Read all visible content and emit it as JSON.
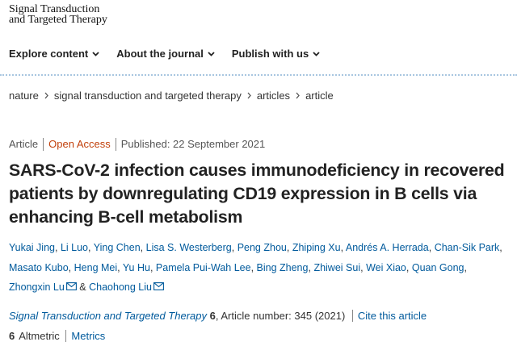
{
  "header": {
    "logo_line1": "Signal Transduction",
    "logo_line2": "and Targeted Therapy"
  },
  "nav": [
    "Explore content",
    "About the journal",
    "Publish with us"
  ],
  "breadcrumb": [
    "nature",
    "signal transduction and targeted therapy",
    "articles",
    "article"
  ],
  "meta": {
    "type": "Article",
    "access": "Open Access",
    "published": "Published: 22 September 2021"
  },
  "title": "SARS-CoV-2 infection causes immunodeficiency in recovered patients by downregulating CD19 expression in B cells via enhancing B-cell metabolism",
  "authors": [
    "Yukai Jing",
    "Li Luo",
    "Ying Chen",
    "Lisa S. Westerberg",
    "Peng Zhou",
    "Zhiping Xu",
    "Andrés A. Herrada",
    "Chan-Sik Park",
    "Masato Kubo",
    "Heng Mei",
    "Yu Hu",
    "Pamela Pui-Wah Lee",
    "Bing Zheng",
    "Zhiwei Sui",
    "Wei Xiao",
    "Quan Gong",
    "Zhongxin Lu",
    "Chaohong Liu"
  ],
  "author_separator": ",",
  "author_last_separator": "&",
  "citation": {
    "journal": "Signal Transduction and Targeted Therapy",
    "volume": "6",
    "article": ", Article number: 345 (2021)",
    "cite": "Cite this article"
  },
  "metrics": {
    "altmetric_score": "6",
    "altmetric": "Altmetric",
    "metrics": "Metrics"
  }
}
